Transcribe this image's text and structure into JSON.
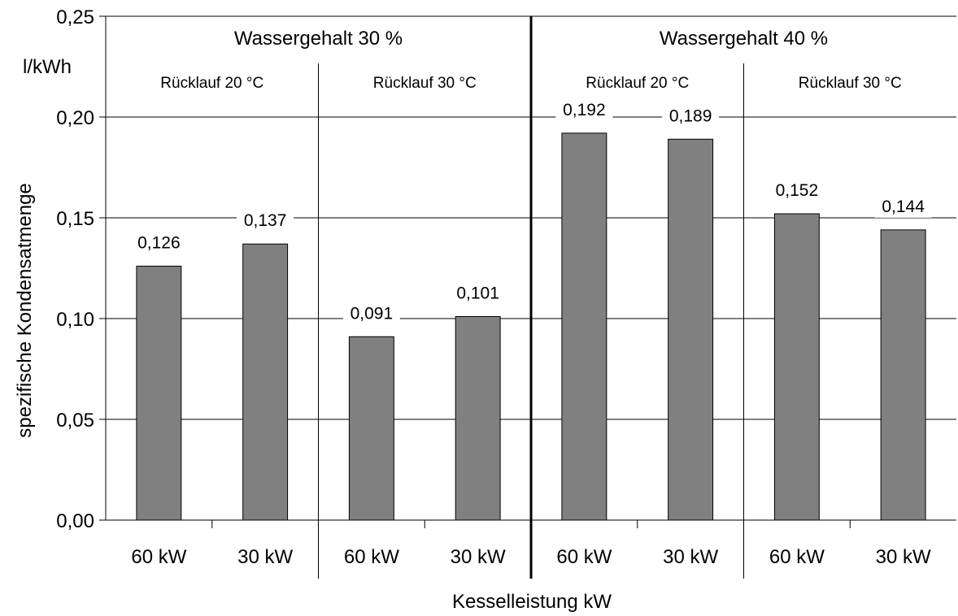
{
  "chart_data": {
    "type": "bar",
    "title": "",
    "xlabel": "Kesselleistung kW",
    "ylabel": "spezifische Kondensatmenge",
    "yunit": "l/kWh",
    "ylim": [
      0,
      0.25
    ],
    "yticks": [
      "0,00",
      "0,05",
      "0,10",
      "0,15",
      "0,20",
      "0,25"
    ],
    "yticks_values": [
      0,
      0.05,
      0.1,
      0.15,
      0.2,
      0.25
    ],
    "grid": true,
    "bar_color": "#808080",
    "groups": [
      {
        "label": "Wassergehalt 30 %",
        "subgroups": [
          {
            "label": "Rücklauf 20 °C",
            "categories": [
              "60 kW",
              "30 kW"
            ],
            "values": [
              0.126,
              0.137
            ],
            "value_labels": [
              "0,126",
              "0,137"
            ]
          },
          {
            "label": "Rücklauf 30 °C",
            "categories": [
              "60 kW",
              "30 kW"
            ],
            "values": [
              0.091,
              0.101
            ],
            "value_labels": [
              "0,091",
              "0,101"
            ]
          }
        ]
      },
      {
        "label": "Wassergehalt 40 %",
        "subgroups": [
          {
            "label": "Rücklauf 20 °C",
            "categories": [
              "60 kW",
              "30 kW"
            ],
            "values": [
              0.192,
              0.189
            ],
            "value_labels": [
              "0,192",
              "0,189"
            ]
          },
          {
            "label": "Rücklauf 30 °C",
            "categories": [
              "60 kW",
              "30 kW"
            ],
            "values": [
              0.152,
              0.144
            ],
            "value_labels": [
              "0,152",
              "0,144"
            ]
          }
        ]
      }
    ]
  }
}
